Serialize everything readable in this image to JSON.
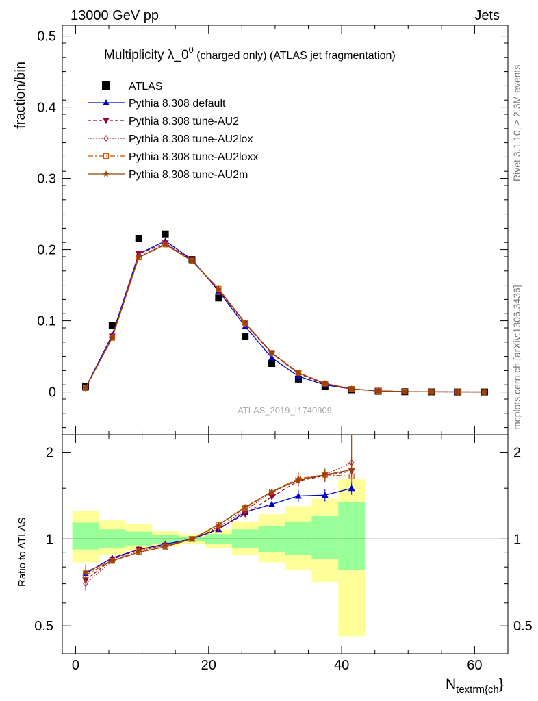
{
  "header": {
    "left": "13000 GeV pp",
    "right": "Jets"
  },
  "side": {
    "rivet": "Rivet 3.1.10, ≥ 2.3M events",
    "mcplots": "mcplots.cern.ch [arXiv:1306.3436]"
  },
  "chart_data": {
    "type": "line",
    "title": "Multiplicity λ_0⁰ (charged only) (ATLAS jet fragmentation)",
    "title_main": "Multiplicity λ_0",
    "title_sup": "0",
    "title_rest": " (charged only) (ATLAS jet fragmentation)",
    "analysis_id": "ATLAS_2019_I1740909",
    "ylabel": "fraction/bin",
    "ratio_ylabel": "Ratio to ATLAS",
    "xlabel_main": "N",
    "xlabel_sub": "textrm{ch",
    "xlabel_close": "}",
    "xlim": [
      -2,
      65
    ],
    "ylim": [
      -0.06,
      0.515
    ],
    "ratio_ylim": [
      0.4,
      2.3
    ],
    "ratio_log": true,
    "xticks": [
      "0",
      "20",
      "40",
      "60"
    ],
    "yticks": [
      "0",
      "0.1",
      "0.2",
      "0.3",
      "0.4",
      "0.5"
    ],
    "ratio_ticks": [
      "0.5",
      "1",
      "2"
    ],
    "bins_center": [
      1.5,
      5.5,
      9.5,
      13.5,
      17.5,
      21.5,
      25.5,
      29.5,
      33.5,
      37.5,
      41.5,
      45.5,
      49.5,
      53.5,
      57.5,
      61.5
    ],
    "atlas": {
      "name": "ATLAS",
      "values": [
        0.008,
        0.093,
        0.215,
        0.222,
        0.186,
        0.132,
        0.078,
        0.04,
        0.018,
        0.008,
        0.003,
        0.001,
        0.0003,
        0.0001,
        0.0,
        0.0
      ]
    },
    "bands": {
      "edges": [
        -0.5,
        3.5,
        7.5,
        11.5,
        15.5,
        19.5,
        23.5,
        27.5,
        31.5,
        35.5,
        39.5,
        43.5
      ],
      "green_low": [
        0.92,
        0.93,
        0.95,
        0.96,
        0.98,
        0.96,
        0.93,
        0.9,
        0.88,
        0.85,
        0.78
      ],
      "green_high": [
        1.14,
        1.08,
        1.06,
        1.03,
        1.02,
        1.04,
        1.08,
        1.11,
        1.15,
        1.2,
        1.34
      ],
      "yellow_low": [
        0.83,
        0.88,
        0.91,
        0.94,
        0.96,
        0.93,
        0.88,
        0.83,
        0.78,
        0.71,
        0.46
      ],
      "yellow_high": [
        1.25,
        1.16,
        1.13,
        1.07,
        1.04,
        1.08,
        1.15,
        1.22,
        1.3,
        1.38,
        1.61
      ]
    },
    "series": [
      {
        "name": "Pythia 8.308 default",
        "color": "#0000cc",
        "marker": "triangle-up",
        "dash": "",
        "values": [
          0.006,
          0.08,
          0.194,
          0.212,
          0.186,
          0.142,
          0.092,
          0.048,
          0.022,
          0.01,
          0.004,
          0.0015,
          0.0006,
          0.0002,
          0.0001,
          0.0
        ],
        "ratio": [
          0.76,
          0.86,
          0.92,
          0.96,
          1.0,
          1.08,
          1.24,
          1.32,
          1.41,
          1.42,
          1.5
        ]
      },
      {
        "name": "Pythia 8.308 tune-AU2",
        "color": "#990033",
        "marker": "triangle-down",
        "dash": "5,3",
        "values": [
          0.0055,
          0.078,
          0.194,
          0.209,
          0.185,
          0.143,
          0.096,
          0.054,
          0.026,
          0.011,
          0.004,
          0.0015,
          0.0005,
          0.0002,
          0.0001,
          0.0
        ],
        "ratio": [
          0.72,
          0.85,
          0.92,
          0.95,
          1.0,
          1.09,
          1.22,
          1.4,
          1.59,
          1.66,
          1.72
        ]
      },
      {
        "name": "Pythia 8.308 tune-AU2lox",
        "color": "#b03030",
        "marker": "diamond-open",
        "dash": "2,2",
        "values": [
          0.0052,
          0.077,
          0.19,
          0.208,
          0.185,
          0.144,
          0.096,
          0.054,
          0.027,
          0.012,
          0.0042,
          0.0016,
          0.0005,
          0.0002,
          0.0001,
          0.0
        ],
        "ratio": [
          0.7,
          0.84,
          0.91,
          0.95,
          1.0,
          1.1,
          1.26,
          1.45,
          1.61,
          1.67,
          1.84
        ]
      },
      {
        "name": "Pythia 8.308 tune-AU2loxx",
        "color": "#cc5500",
        "marker": "square-open",
        "dash": "8,3,2,3",
        "values": [
          0.0055,
          0.076,
          0.189,
          0.207,
          0.184,
          0.145,
          0.097,
          0.055,
          0.027,
          0.012,
          0.0043,
          0.0016,
          0.0005,
          0.0002,
          0.0001,
          0.0
        ],
        "ratio": [
          0.75,
          0.84,
          0.9,
          0.94,
          1.0,
          1.12,
          1.28,
          1.46,
          1.62,
          1.67,
          1.65
        ]
      },
      {
        "name": "Pythia 8.308 tune-AU2m",
        "color": "#994400",
        "marker": "star",
        "dash": "",
        "values": [
          0.0058,
          0.076,
          0.189,
          0.207,
          0.184,
          0.145,
          0.097,
          0.055,
          0.027,
          0.012,
          0.0042,
          0.0016,
          0.0005,
          0.0002,
          0.0001,
          0.0
        ],
        "ratio": [
          0.77,
          0.84,
          0.9,
          0.94,
          1.0,
          1.12,
          1.29,
          1.46,
          1.6,
          1.67,
          1.74
        ]
      }
    ]
  }
}
